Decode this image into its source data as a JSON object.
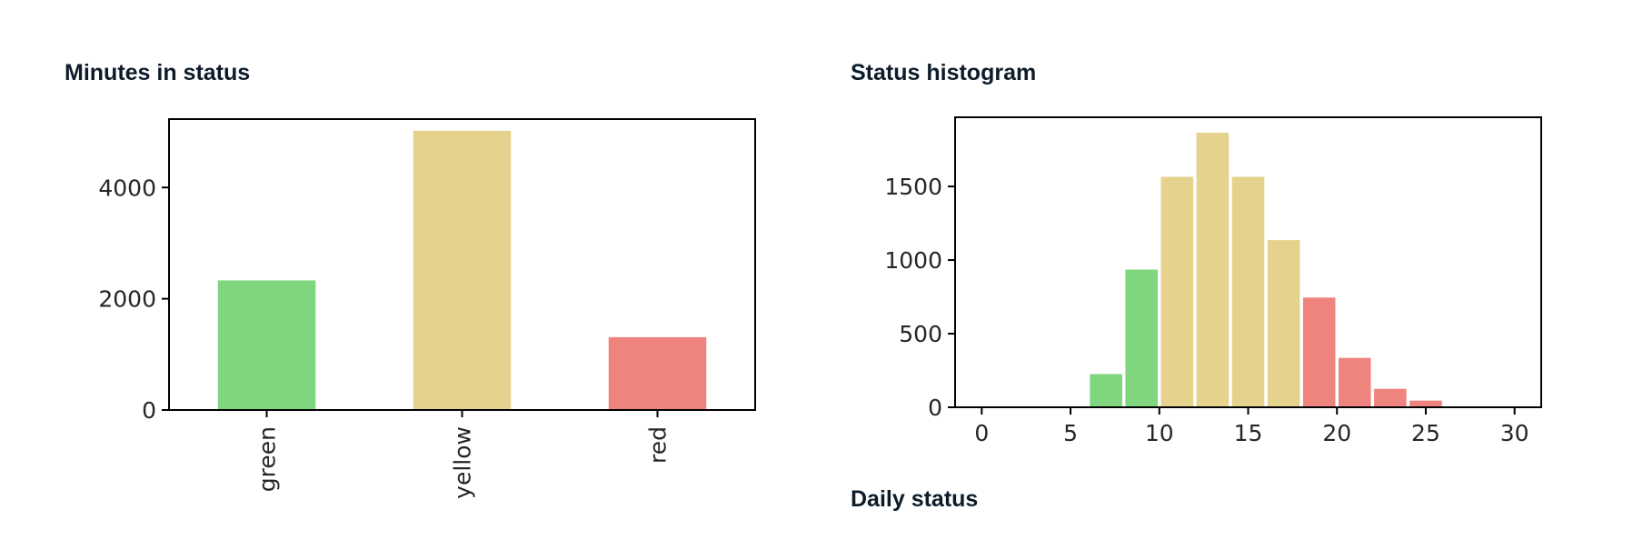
{
  "headings": {
    "left": "Minutes in status",
    "right": "Status histogram",
    "daily": "Daily status"
  },
  "chart_data": [
    {
      "type": "bar",
      "title": "Minutes in status",
      "categories": [
        "green",
        "yellow",
        "red"
      ],
      "values": [
        2330,
        5020,
        1310
      ],
      "colors": [
        "#7fd67f",
        "#e4d28d",
        "#ef847f"
      ],
      "ylim": [
        0,
        5230
      ],
      "yticks": [
        0,
        2000,
        4000
      ],
      "xlabel": "",
      "ylabel": "",
      "grid": false,
      "legend": "none"
    },
    {
      "type": "bar",
      "title": "Status histogram",
      "bins": [
        {
          "x0": 6,
          "x1": 8,
          "value": 230,
          "status": "green"
        },
        {
          "x0": 8,
          "x1": 10,
          "value": 940,
          "status": "green"
        },
        {
          "x0": 10,
          "x1": 12,
          "value": 1570,
          "status": "yellow"
        },
        {
          "x0": 12,
          "x1": 14,
          "value": 1870,
          "status": "yellow"
        },
        {
          "x0": 14,
          "x1": 16,
          "value": 1570,
          "status": "yellow"
        },
        {
          "x0": 16,
          "x1": 18,
          "value": 1140,
          "status": "yellow"
        },
        {
          "x0": 18,
          "x1": 20,
          "value": 750,
          "status": "red"
        },
        {
          "x0": 20,
          "x1": 22,
          "value": 340,
          "status": "red"
        },
        {
          "x0": 22,
          "x1": 24,
          "value": 130,
          "status": "red"
        },
        {
          "x0": 24,
          "x1": 26,
          "value": 50,
          "status": "red"
        }
      ],
      "status_colors": {
        "green": "#7fd67f",
        "yellow": "#e4d28d",
        "red": "#ef847f"
      },
      "xlim": [
        -1.5,
        31.5
      ],
      "xticks": [
        0,
        5,
        10,
        15,
        20,
        25,
        30
      ],
      "ylim": [
        0,
        1970
      ],
      "yticks": [
        0,
        500,
        1000,
        1500
      ],
      "xlabel": "",
      "ylabel": "",
      "grid": false,
      "legend": "none"
    }
  ]
}
